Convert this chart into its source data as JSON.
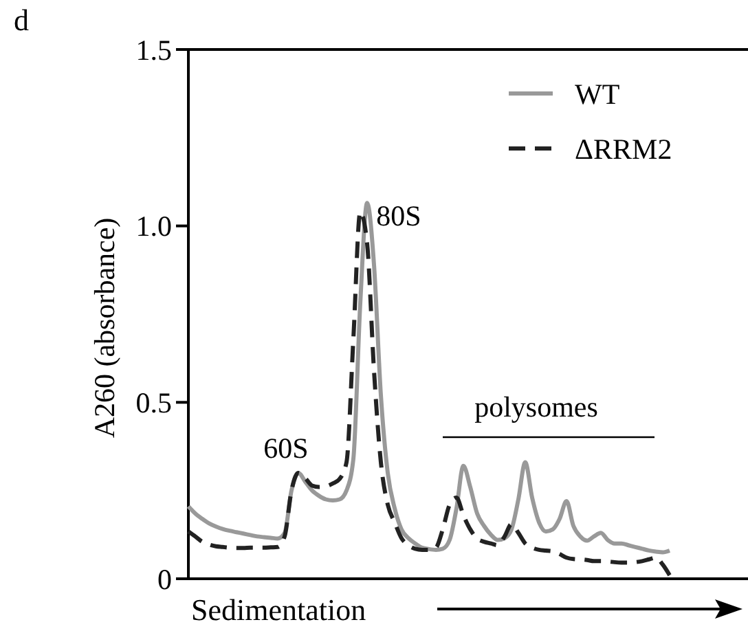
{
  "chart_data": {
    "type": "line",
    "title": "d",
    "xlabel": "Sedimentation",
    "ylabel": "A260 (absorbance)",
    "categories": [
      null,
      null,
      null,
      null,
      null,
      null,
      null,
      null,
      null,
      null,
      null,
      null,
      null,
      null,
      null,
      null,
      null,
      null,
      null,
      null,
      null,
      null,
      null,
      null,
      null,
      null,
      null,
      null,
      null,
      null,
      null,
      null,
      null,
      null,
      null,
      null,
      null,
      null,
      null,
      null,
      null,
      null,
      null,
      null,
      null,
      null,
      null,
      null,
      null,
      null,
      null,
      null,
      null,
      null,
      null,
      null,
      null,
      null,
      null,
      null,
      null,
      null,
      null,
      null,
      null,
      null,
      null,
      null,
      null,
      null,
      null
    ],
    "series": [
      {
        "name": "WT",
        "color": "#999999",
        "line_style": "solid",
        "values": [
          0.205,
          0.185,
          0.17,
          0.157,
          0.148,
          0.141,
          0.136,
          0.132,
          0.128,
          0.124,
          0.12,
          0.118,
          0.116,
          0.114,
          0.13,
          0.25,
          0.3,
          0.275,
          0.25,
          0.235,
          0.225,
          0.222,
          0.225,
          0.25,
          0.34,
          0.78,
          1.065,
          0.89,
          0.52,
          0.3,
          0.2,
          0.14,
          0.115,
          0.1,
          0.088,
          0.084,
          0.082,
          0.085,
          0.11,
          0.2,
          0.32,
          0.26,
          0.185,
          0.15,
          0.125,
          0.11,
          0.115,
          0.14,
          0.225,
          0.33,
          0.23,
          0.16,
          0.134,
          0.14,
          0.17,
          0.22,
          0.15,
          0.12,
          0.108,
          0.12,
          0.13,
          0.11,
          0.1,
          0.1,
          0.095,
          0.09,
          0.085,
          0.08,
          0.077,
          0.075,
          0.08
        ]
      },
      {
        "name": "ΔRRM2",
        "color": "#222222",
        "line_style": "dashed",
        "values": [
          0.134,
          0.12,
          0.105,
          0.097,
          0.092,
          0.09,
          0.088,
          0.087,
          0.087,
          0.088,
          0.088,
          0.088,
          0.089,
          0.09,
          0.12,
          0.25,
          0.3,
          0.285,
          0.264,
          0.26,
          0.262,
          0.27,
          0.283,
          0.33,
          0.68,
          1.04,
          0.95,
          0.59,
          0.33,
          0.21,
          0.16,
          0.115,
          0.095,
          0.085,
          0.082,
          0.082,
          0.088,
          0.14,
          0.21,
          0.23,
          0.18,
          0.14,
          0.114,
          0.105,
          0.1,
          0.095,
          0.12,
          0.155,
          0.13,
          0.1,
          0.088,
          0.082,
          0.08,
          0.078,
          0.07,
          0.06,
          0.056,
          0.055,
          0.053,
          0.05,
          0.05,
          0.049,
          0.047,
          0.046,
          0.046,
          0.047,
          0.05,
          0.055,
          0.06,
          0.04,
          0.01
        ]
      }
    ],
    "ylim": [
      0,
      1.5
    ],
    "yticks": [
      0,
      {
        "value": 0.5,
        "label": "0.5"
      },
      {
        "value": 1,
        "label": "1.0"
      },
      {
        "value": 1.5,
        "label": "1.5"
      }
    ],
    "tick_labels": "y",
    "legend": "top right",
    "annotations": [
      "60S",
      "80S",
      "polysomes"
    ]
  }
}
